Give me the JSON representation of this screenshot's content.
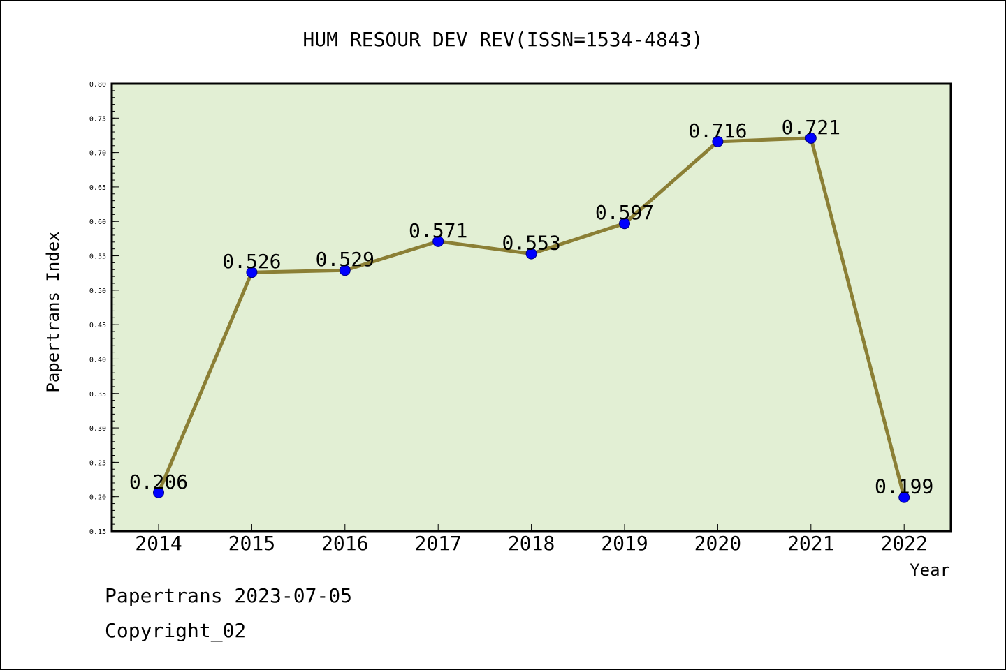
{
  "colors": {
    "plot_background": "#e2efd4",
    "line": "#8b7f35",
    "marker_fill": "#0000ff",
    "marker_stroke": "#000080"
  },
  "chart_data": {
    "type": "line",
    "title": "HUM RESOUR DEV REV(ISSN=1534-4843)",
    "xlabel": "Year",
    "ylabel": "Papertrans Index",
    "categories": [
      "2014",
      "2015",
      "2016",
      "2017",
      "2018",
      "2019",
      "2020",
      "2021",
      "2022"
    ],
    "series": [
      {
        "values": [
          0.206,
          0.526,
          0.529,
          0.571,
          0.553,
          0.597,
          0.716,
          0.721,
          0.199
        ],
        "data_labels": [
          "0.206",
          "0.526",
          "0.529",
          "0.571",
          "0.553",
          "0.597",
          "0.716",
          "0.721",
          "0.199"
        ]
      }
    ],
    "ylim": [
      0.15,
      0.8
    ],
    "yticks": [
      "0.15",
      "0.20",
      "0.25",
      "0.30",
      "0.35",
      "0.40",
      "0.45",
      "0.50",
      "0.55",
      "0.60",
      "0.65",
      "0.70",
      "0.75",
      "0.80"
    ],
    "grid": false,
    "legend": "none"
  },
  "footer": {
    "line1": "Papertrans 2023-07-05",
    "line2": "Copyright_02"
  }
}
